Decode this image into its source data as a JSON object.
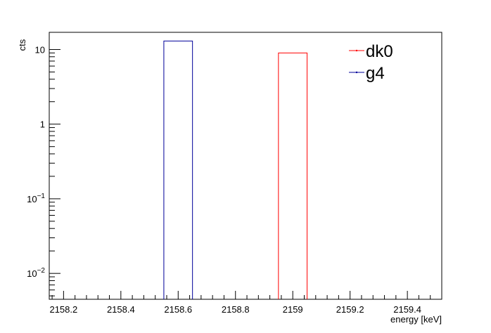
{
  "chart_data": {
    "type": "bar",
    "title": "",
    "xlabel": "energy [keV]",
    "ylabel": "cts",
    "x_scale": "linear",
    "y_scale": "log",
    "xlim": [
      2158.15,
      2159.52
    ],
    "ylim": [
      0.0045,
      17
    ],
    "x_ticks": [
      {
        "value": 2158.2,
        "label": "2158.2"
      },
      {
        "value": 2158.4,
        "label": "2158.4"
      },
      {
        "value": 2158.6,
        "label": "2158.6"
      },
      {
        "value": 2158.8,
        "label": "2158.8"
      },
      {
        "value": 2159.0,
        "label": "2159"
      },
      {
        "value": 2159.2,
        "label": "2159.2"
      },
      {
        "value": 2159.4,
        "label": "2159.4"
      }
    ],
    "y_ticks": [
      {
        "value": 0.01,
        "base": "10",
        "exp": "−2"
      },
      {
        "value": 0.1,
        "base": "10",
        "exp": "−1"
      },
      {
        "value": 1,
        "base": "1",
        "exp": ""
      },
      {
        "value": 10,
        "base": "10",
        "exp": ""
      }
    ],
    "grid": false,
    "legend_position": "top-right",
    "series": [
      {
        "name": "dk0",
        "color": "#ff0000",
        "bins": [
          {
            "x_low": 2158.95,
            "x_high": 2159.05,
            "value": 9
          }
        ]
      },
      {
        "name": "g4",
        "color": "#000099",
        "bins": [
          {
            "x_low": 2158.55,
            "x_high": 2158.65,
            "value": 13
          }
        ]
      }
    ]
  }
}
